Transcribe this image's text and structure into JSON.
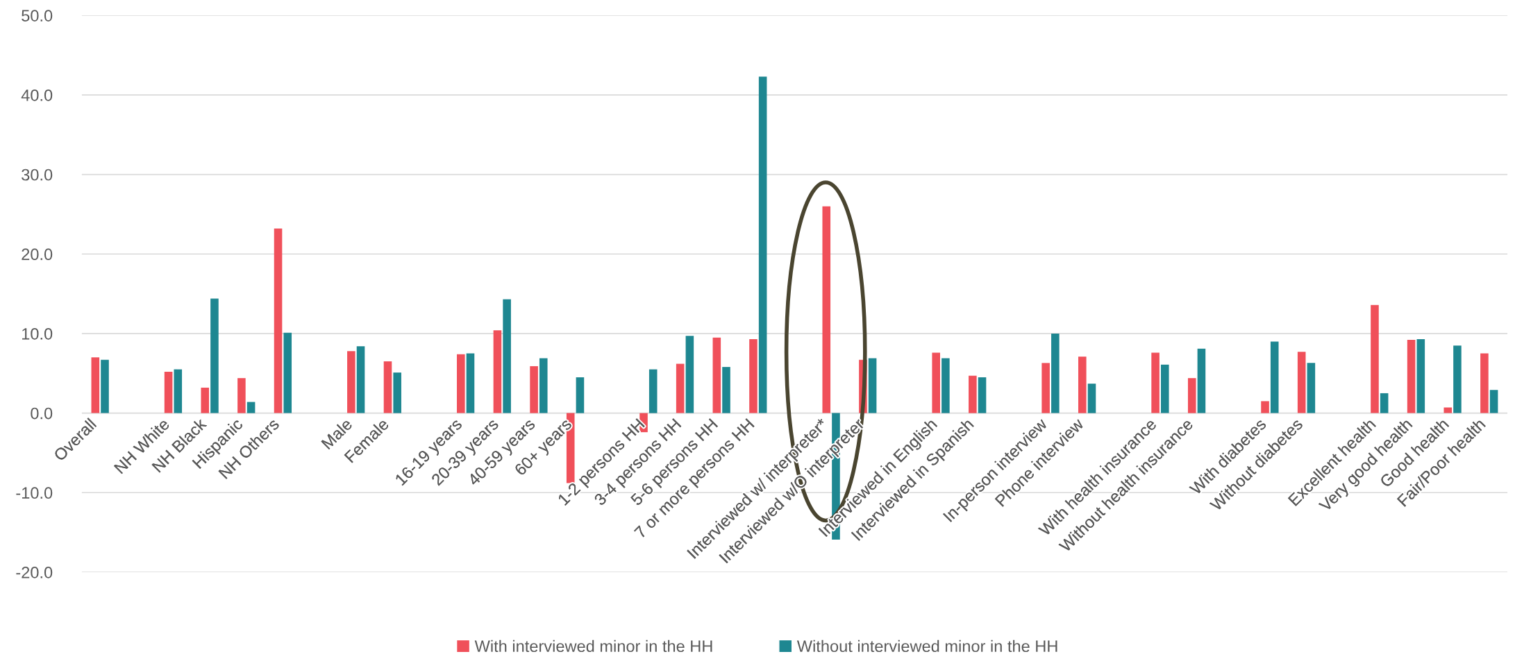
{
  "chart_data": {
    "type": "bar",
    "categories": [
      "Overall",
      null,
      "NH White",
      "NH Black",
      "Hispanic",
      "NH Others",
      null,
      "Male",
      "Female",
      null,
      "16-19 years",
      "20-39 years",
      "40-59 years",
      "60+ years",
      null,
      "1-2 persons HH",
      "3-4 persons HH",
      "5-6 persons HH",
      "7 or more persons HH",
      null,
      "Interviewed w/ interpreter*",
      "Interviewed w/O interpreter",
      null,
      "Interviewed in English",
      "Interviewed in Spanish",
      null,
      "In-person interview",
      "Phone interview",
      null,
      "With health insurance",
      "Without health insurance",
      null,
      "With diabetes",
      "Without diabetes",
      null,
      "Excellent health",
      "Very good health",
      "Good health",
      "Fair/Poor health"
    ],
    "series": [
      {
        "name": "With interviewed minor in the HH",
        "color": "#f0505a",
        "values": [
          7.0,
          null,
          5.2,
          3.2,
          4.4,
          23.2,
          null,
          7.8,
          6.5,
          null,
          7.4,
          10.4,
          5.9,
          -8.8,
          null,
          -2.4,
          6.2,
          9.5,
          9.3,
          null,
          26.0,
          6.7,
          null,
          7.6,
          4.7,
          null,
          6.3,
          7.1,
          null,
          7.6,
          4.4,
          null,
          1.5,
          7.7,
          null,
          13.6,
          9.2,
          0.7,
          7.5
        ]
      },
      {
        "name": "Without interviewed minor in the HH",
        "color": "#1e8791",
        "values": [
          6.7,
          null,
          5.5,
          14.4,
          1.4,
          10.1,
          null,
          8.4,
          5.1,
          null,
          7.5,
          14.3,
          6.9,
          4.5,
          null,
          5.5,
          9.7,
          5.8,
          42.3,
          null,
          -15.9,
          6.9,
          null,
          6.9,
          4.5,
          null,
          10.0,
          3.7,
          null,
          6.1,
          8.1,
          null,
          9.0,
          6.3,
          null,
          2.5,
          9.3,
          8.5,
          2.9
        ]
      }
    ],
    "ylim": [
      -20,
      50
    ],
    "yticks": [
      {
        "value": -20,
        "label": "-20.0"
      },
      {
        "value": -10,
        "label": "-10.0"
      },
      {
        "value": 0,
        "label": "0.0"
      },
      {
        "value": 10,
        "label": "10.0"
      },
      {
        "value": 20,
        "label": "20.0"
      },
      {
        "value": 30,
        "label": "30.0"
      },
      {
        "value": 40,
        "label": "40.0"
      },
      {
        "value": 50,
        "label": "50.0"
      }
    ],
    "grid": "y",
    "legend": "bottom"
  }
}
